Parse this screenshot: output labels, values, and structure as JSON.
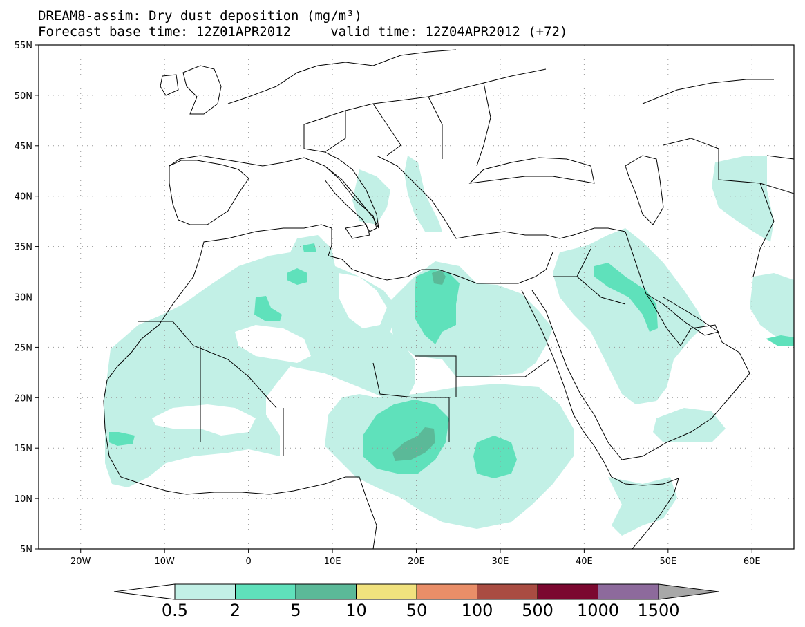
{
  "title": {
    "line1": "DREAM8-assim: Dry dust deposition (mg/m³)",
    "line2": "Forecast base time: 12Z01APR2012     valid time: 12Z04APR2012 (+72)"
  },
  "map": {
    "lat_range": [
      5,
      55
    ],
    "lon_range": [
      -25,
      65
    ],
    "lat_labels": [
      "5N",
      "10N",
      "15N",
      "20N",
      "25N",
      "30N",
      "35N",
      "40N",
      "45N",
      "50N",
      "55N"
    ],
    "lon_labels": [
      "20W",
      "10W",
      "0",
      "10E",
      "20E",
      "30E",
      "40E",
      "50E",
      "60E"
    ],
    "gridlines": "dotted"
  },
  "legend": {
    "colors": [
      "#c2f0e6",
      "#5fe1bb",
      "#5bb998",
      "#f1e27e",
      "#e98e68",
      "#a94c42",
      "#7b0830",
      "#8d6a9c"
    ],
    "end_low_color": "#ffffff",
    "end_high_color": "#a8a8a8",
    "labels": [
      "0.5",
      "2",
      "5",
      "10",
      "50",
      "100",
      "500",
      "1000",
      "1500"
    ]
  }
}
